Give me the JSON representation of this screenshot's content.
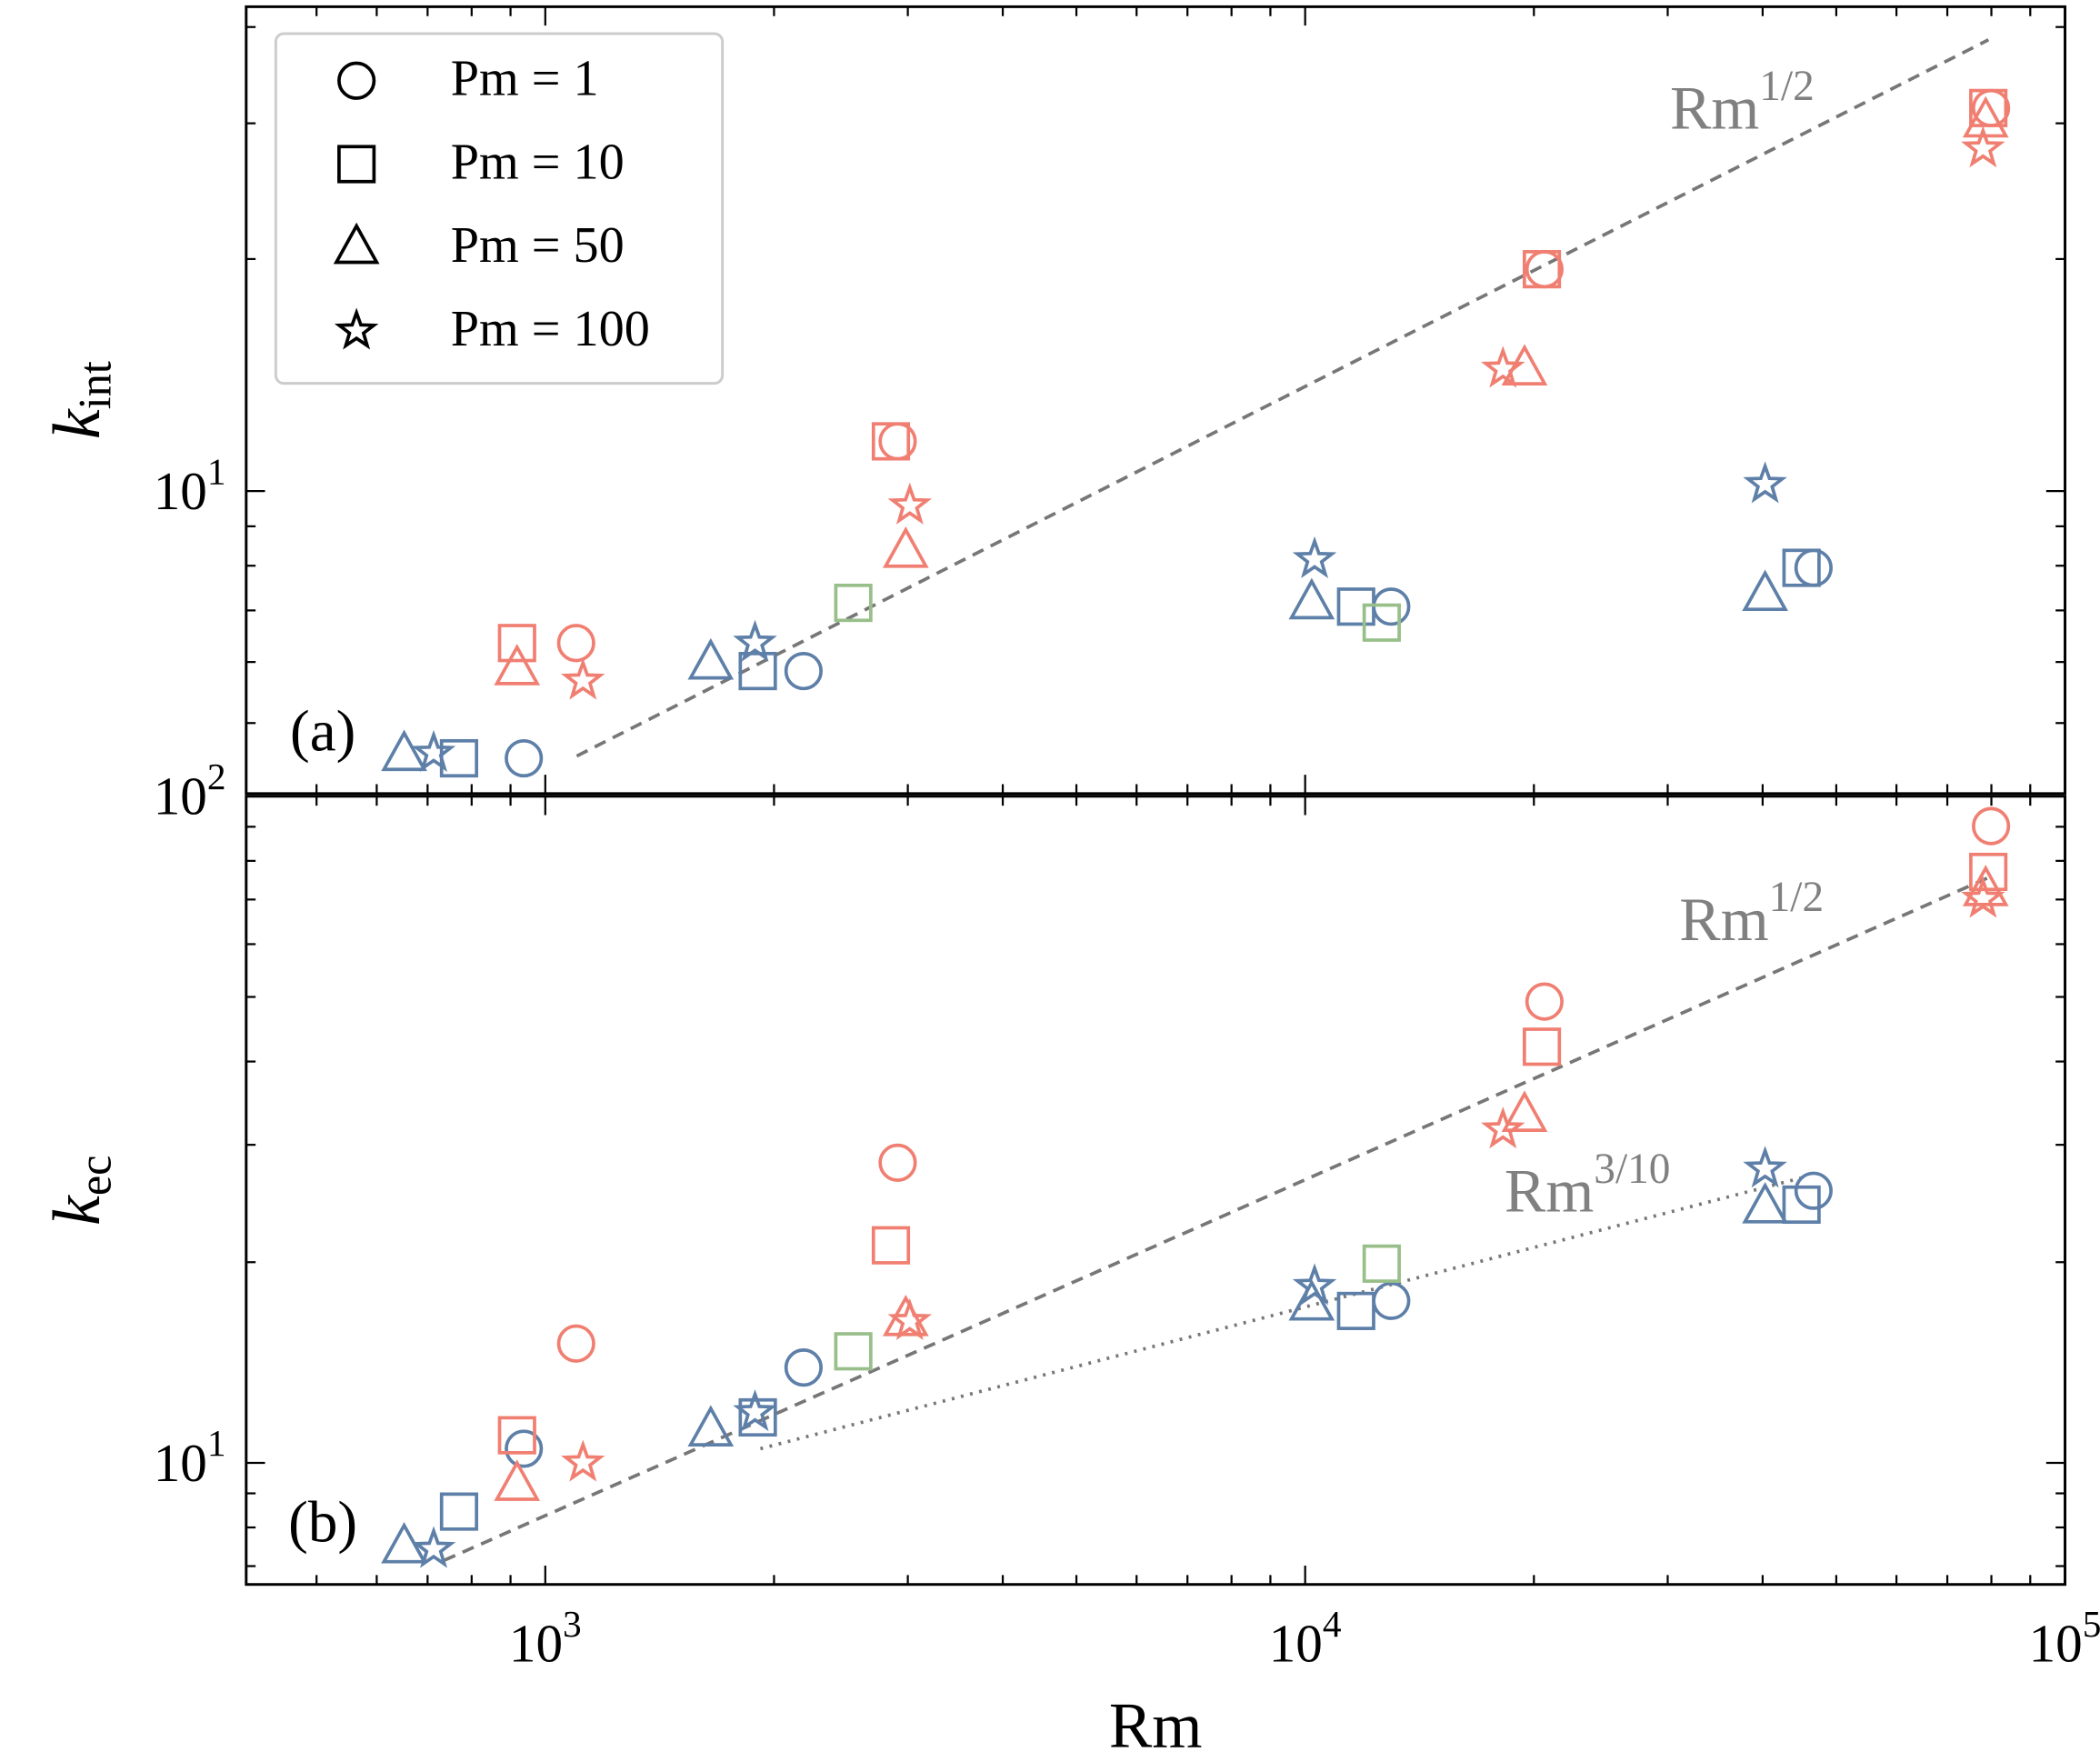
{
  "chart_data": [
    {
      "type": "scatter",
      "xscale": "log",
      "yscale": "log",
      "ylabel": {
        "text": "k",
        "sub": "int"
      },
      "panel_label": "(a)",
      "xlim": [
        404,
        100000
      ],
      "xticks": [
        1000,
        10000,
        100000
      ],
      "xtick_labels": false,
      "xminor": [
        500,
        600,
        700,
        800,
        900,
        2000,
        3000,
        4000,
        5000,
        6000,
        7000,
        8000,
        9000,
        20000,
        30000,
        40000,
        50000,
        60000,
        70000,
        80000,
        90000
      ],
      "ylim": [
        4.05,
        42.5
      ],
      "yticks": [
        {
          "value": 10,
          "label": "10",
          "power": "1"
        }
      ],
      "yminor": [
        5,
        6,
        7,
        8,
        9,
        20,
        30,
        40
      ],
      "legend": "upper left",
      "series": [
        {
          "name": "Pm = 1",
          "marker": "circle",
          "x": [
            2909,
            1098,
            20650,
            79910,
            937,
            2187,
            12980,
            46670
          ],
          "values": [
            11.6,
            6.35,
            19.4,
            31.4,
            4.5,
            5.84,
            7.08,
            7.95
          ],
          "colors": [
            "#f07f72",
            "#f07f72",
            "#f07f72",
            "#f07f72",
            "#5d7fa8",
            "#5d7fa8",
            "#5d7fa8",
            "#5d7fa8"
          ]
        },
        {
          "name": "Pm = 10",
          "marker": "square",
          "x": [
            2850,
            918,
            20490,
            79260,
            770,
            1904,
            11670,
            45000,
            2543,
            12610
          ],
          "values": [
            11.6,
            6.35,
            19.4,
            31.4,
            4.5,
            5.84,
            7.08,
            7.95,
            7.16,
            6.75
          ],
          "colors": [
            "#f07f72",
            "#f07f72",
            "#f07f72",
            "#f07f72",
            "#5d7fa8",
            "#5d7fa8",
            "#5d7fa8",
            "#5d7fa8",
            "#98bf8a",
            "#98bf8a"
          ]
        },
        {
          "name": "Pm = 50",
          "marker": "triangle",
          "x": [
            2981,
            918,
            19440,
            78630,
            652,
            1651,
            10200,
            40300
          ],
          "values": [
            8.35,
            5.88,
            14.4,
            30.2,
            4.55,
            5.98,
            7.16,
            7.34
          ],
          "colors": [
            "#f07f72",
            "#f07f72",
            "#f07f72",
            "#f07f72",
            "#5d7fa8",
            "#5d7fa8",
            "#5d7fa8",
            "#5d7fa8"
          ]
        },
        {
          "name": "Pm = 100",
          "marker": "star",
          "x": [
            3018,
            1121,
            18210,
            78000,
            713,
            1888,
            10290,
            40300
          ],
          "values": [
            9.57,
            5.67,
            14.4,
            27.8,
            4.57,
            6.35,
            8.15,
            10.2
          ],
          "colors": [
            "#f07f72",
            "#f07f72",
            "#f07f72",
            "#f07f72",
            "#5d7fa8",
            "#5d7fa8",
            "#5d7fa8",
            "#5d7fa8"
          ]
        }
      ],
      "lines": [
        {
          "x": [
            1100,
            79300
          ],
          "values": [
            4.53,
            38.5
          ],
          "style": "dashed",
          "color": "#777777"
        }
      ],
      "annotations": [
        {
          "text": "Rm",
          "sup": "1/2"
        }
      ]
    },
    {
      "type": "scatter",
      "xscale": "log",
      "yscale": "log",
      "xlabel": "Rm",
      "ylabel": {
        "text": "k",
        "sub": "ec"
      },
      "panel_label": "(b)",
      "xlim": [
        404,
        100000
      ],
      "xticks": [
        {
          "value": 1000,
          "label": "10",
          "power": "3"
        },
        {
          "value": 10000,
          "label": "10",
          "power": "4"
        },
        {
          "value": 100000,
          "label": "10",
          "power": "5"
        }
      ],
      "xtick_labels": true,
      "xminor": [
        500,
        600,
        700,
        800,
        900,
        2000,
        3000,
        4000,
        5000,
        6000,
        7000,
        8000,
        9000,
        20000,
        30000,
        40000,
        50000,
        60000,
        70000,
        80000,
        90000
      ],
      "ylim": [
        6.57,
        100
      ],
      "yticks": [
        {
          "value": 10,
          "label": "10",
          "power": "1"
        },
        {
          "value": 100,
          "label": "10",
          "power": "2"
        }
      ],
      "yminor": [
        7,
        8,
        9,
        20,
        30,
        40,
        50,
        60,
        70,
        80,
        90
      ],
      "series": [
        {
          "name": "Pm = 1",
          "marker": "circle",
          "x": [
            2909,
            1098,
            20650,
            79910,
            937,
            2187,
            12980,
            46670
          ],
          "values": [
            28.2,
            15.1,
            49.2,
            90.2,
            10.5,
            13.9,
            17.5,
            25.6
          ],
          "colors": [
            "#f07f72",
            "#f07f72",
            "#f07f72",
            "#f07f72",
            "#5d7fa8",
            "#5d7fa8",
            "#5d7fa8",
            "#5d7fa8"
          ]
        },
        {
          "name": "Pm = 10",
          "marker": "square",
          "x": [
            2850,
            918,
            20490,
            79260,
            770,
            1904,
            11670,
            45000,
            2543,
            12610
          ],
          "values": [
            21.2,
            11.0,
            42.1,
            77.0,
            8.45,
            11.7,
            16.9,
            24.4,
            14.7,
            19.9
          ],
          "colors": [
            "#f07f72",
            "#f07f72",
            "#f07f72",
            "#f07f72",
            "#5d7fa8",
            "#5d7fa8",
            "#5d7fa8",
            "#5d7fa8",
            "#98bf8a",
            "#98bf8a"
          ]
        },
        {
          "name": "Pm = 50",
          "marker": "triangle",
          "x": [
            2981,
            918,
            19440,
            78630,
            652,
            1651,
            10200,
            40300
          ],
          "values": [
            16.4,
            9.28,
            33.2,
            72.4,
            7.48,
            11.2,
            17.3,
            24.2
          ],
          "colors": [
            "#f07f72",
            "#f07f72",
            "#f07f72",
            "#f07f72",
            "#5d7fa8",
            "#5d7fa8",
            "#5d7fa8",
            "#5d7fa8"
          ]
        },
        {
          "name": "Pm = 100",
          "marker": "star",
          "x": [
            3018,
            1121,
            18210,
            78000,
            713,
            1888,
            10290,
            40300
          ],
          "values": [
            16.3,
            10.0,
            31.6,
            70.1,
            7.42,
            11.9,
            18.4,
            27.6
          ],
          "colors": [
            "#f07f72",
            "#f07f72",
            "#f07f72",
            "#f07f72",
            "#5d7fa8",
            "#5d7fa8",
            "#5d7fa8",
            "#5d7fa8"
          ]
        }
      ],
      "lines": [
        {
          "x": [
            736,
            79300
          ],
          "values": [
            7.14,
            75.5
          ],
          "style": "dashed",
          "color": "#777777"
        },
        {
          "x": [
            1919,
            45200
          ],
          "values": [
            10.5,
            26.8
          ],
          "style": "dotted",
          "color": "#777777"
        }
      ],
      "annotations": [
        {
          "text": "Rm",
          "sup": "1/2"
        },
        {
          "text": "Rm",
          "sup": "3/10"
        }
      ]
    }
  ]
}
